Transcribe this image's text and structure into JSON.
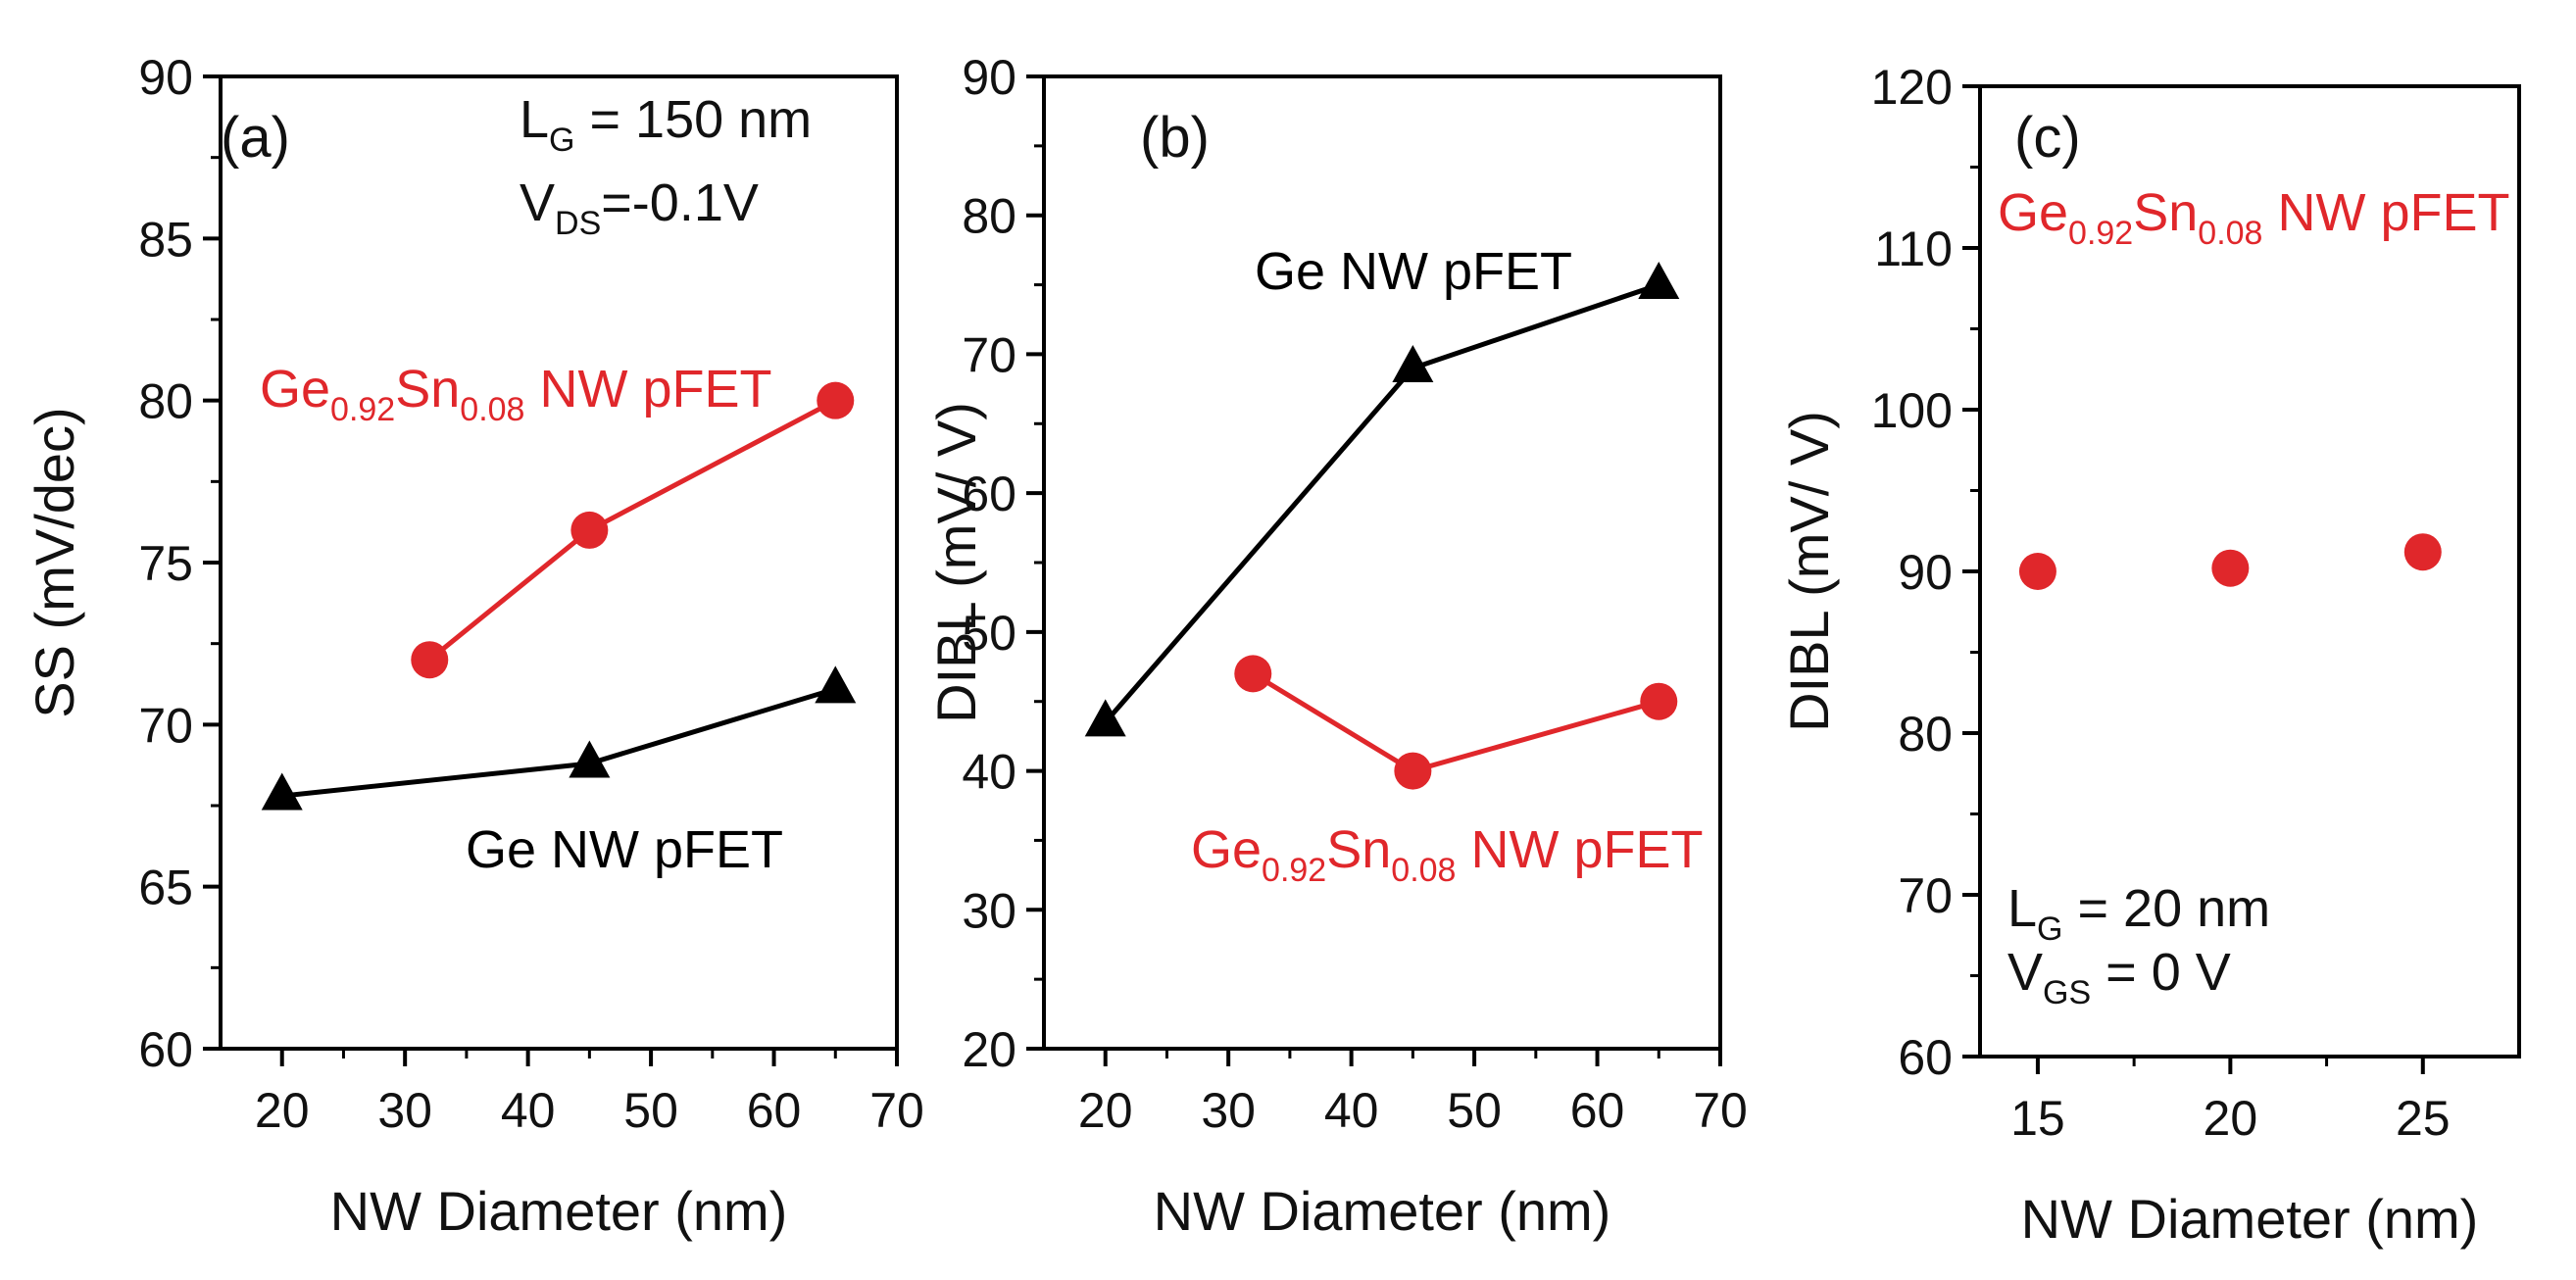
{
  "chart_data": [
    {
      "type": "line",
      "panel": "(a)",
      "xlabel": "NW Diameter (nm)",
      "ylabel": "SS (mV/dec)",
      "xlim": [
        15,
        70
      ],
      "ylim": [
        60,
        90
      ],
      "xticks": [
        20,
        30,
        40,
        50,
        60,
        70
      ],
      "yticks": [
        60,
        65,
        70,
        75,
        80,
        85,
        90
      ],
      "conditions": [
        {
          "main": "L",
          "sub": "G",
          "rest": " = 150 nm"
        },
        {
          "main": "V",
          "sub": "DS",
          "rest": "=-0.1V"
        }
      ],
      "series": [
        {
          "name": "Ge0.92Sn0.08 NW pFET",
          "marker": "circle",
          "color": "#e0272b",
          "line": true,
          "x": [
            32,
            45,
            65
          ],
          "y": [
            72,
            76,
            80
          ],
          "label": {
            "parts": [
              {
                "t": "Ge",
                "sub": false
              },
              {
                "t": "0.92",
                "sub": true
              },
              {
                "t": "Sn",
                "sub": false
              },
              {
                "t": "0.08",
                "sub": true
              },
              {
                "t": " NW pFET",
                "sub": false
              }
            ]
          }
        },
        {
          "name": "Ge NW pFET",
          "marker": "triangle",
          "color": "#000000",
          "line": true,
          "x": [
            20,
            45,
            65
          ],
          "y": [
            67.8,
            68.8,
            71.1
          ],
          "label": {
            "parts": [
              {
                "t": "Ge NW pFET",
                "sub": false
              }
            ]
          }
        }
      ]
    },
    {
      "type": "line",
      "panel": "(b)",
      "xlabel": "NW Diameter (nm)",
      "ylabel": "DIBL (mV/ V)",
      "xlim": [
        15,
        70
      ],
      "ylim": [
        20,
        90
      ],
      "xticks": [
        20,
        30,
        40,
        50,
        60,
        70
      ],
      "yticks": [
        20,
        30,
        40,
        50,
        60,
        70,
        80,
        90
      ],
      "conditions": [],
      "series": [
        {
          "name": "Ge NW pFET",
          "marker": "triangle",
          "color": "#000000",
          "line": true,
          "x": [
            20,
            45,
            65
          ],
          "y": [
            43.5,
            69,
            75
          ],
          "label": {
            "parts": [
              {
                "t": "Ge NW pFET",
                "sub": false
              }
            ]
          }
        },
        {
          "name": "Ge0.92Sn0.08 NW pFET",
          "marker": "circle",
          "color": "#e0272b",
          "line": true,
          "x": [
            32,
            45,
            65
          ],
          "y": [
            47,
            40,
            45
          ],
          "label": {
            "parts": [
              {
                "t": "Ge",
                "sub": false
              },
              {
                "t": "0.92",
                "sub": true
              },
              {
                "t": "Sn",
                "sub": false
              },
              {
                "t": "0.08",
                "sub": true
              },
              {
                "t": " NW pFET",
                "sub": false
              }
            ]
          }
        }
      ]
    },
    {
      "type": "scatter",
      "panel": "(c)",
      "xlabel": "NW Diameter (nm)",
      "ylabel": "DIBL (mV/ V)",
      "xlim": [
        13.5,
        27.5
      ],
      "ylim": [
        60,
        120
      ],
      "xticks": [
        15,
        20,
        25
      ],
      "yticks": [
        60,
        70,
        80,
        90,
        100,
        110,
        120
      ],
      "conditions": [
        {
          "main": "L",
          "sub": "G",
          "rest": " = 20 nm"
        },
        {
          "main": "V",
          "sub": "GS",
          "rest": " = 0 V"
        }
      ],
      "series": [
        {
          "name": "Ge0.92Sn0.08 NW pFET",
          "marker": "circle",
          "color": "#e0272b",
          "line": false,
          "x": [
            15,
            20,
            25
          ],
          "y": [
            90,
            90.2,
            91.2
          ],
          "label": {
            "parts": [
              {
                "t": "Ge",
                "sub": false
              },
              {
                "t": "0.92",
                "sub": true
              },
              {
                "t": "Sn",
                "sub": false
              },
              {
                "t": "0.08",
                "sub": true
              },
              {
                "t": " NW pFET",
                "sub": false
              }
            ]
          }
        }
      ]
    }
  ]
}
